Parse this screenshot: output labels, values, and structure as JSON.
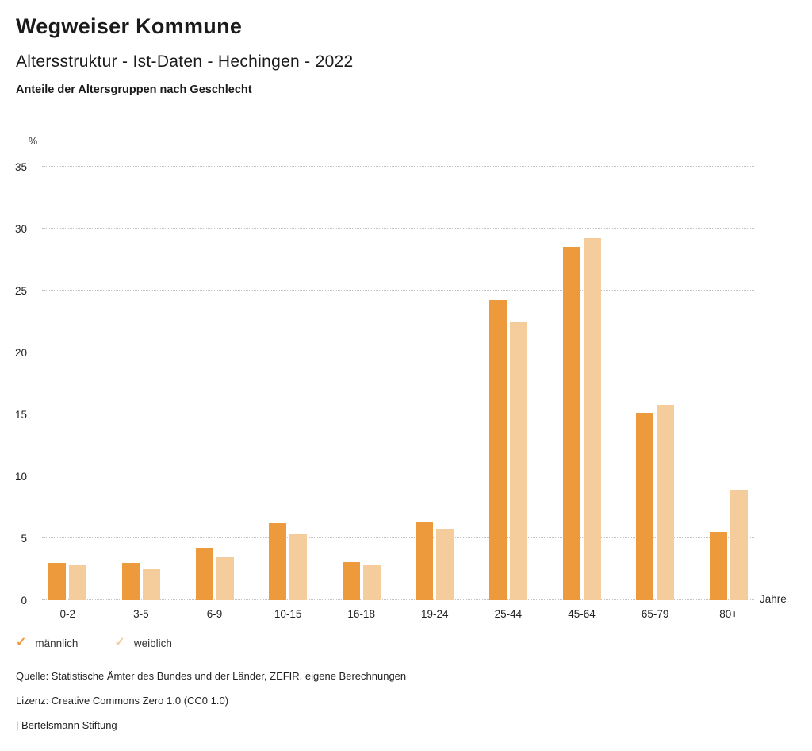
{
  "header": {
    "title": "Wegweiser Kommune",
    "subtitle": "Altersstruktur - Ist-Daten - Hechingen - 2022",
    "chart_heading": "Anteile der Altersgruppen nach Geschlecht"
  },
  "chart_data": {
    "type": "bar",
    "title": "Anteile der Altersgruppen nach Geschlecht",
    "categories": [
      "0-2",
      "3-5",
      "6-9",
      "10-15",
      "16-18",
      "19-24",
      "25-44",
      "45-64",
      "65-79",
      "80+"
    ],
    "series": [
      {
        "name": "männlich",
        "color": "#EC9A3C",
        "values": [
          3.0,
          3.0,
          4.2,
          6.2,
          3.1,
          6.3,
          24.2,
          28.5,
          15.1,
          5.5
        ]
      },
      {
        "name": "weiblich",
        "color": "#F5CD9C",
        "values": [
          2.8,
          2.5,
          3.5,
          5.3,
          2.8,
          5.8,
          22.5,
          29.2,
          15.8,
          8.9
        ]
      }
    ],
    "xlabel": "Jahre",
    "ylabel": "%",
    "ylim": [
      0,
      35
    ],
    "ytick_step": 5,
    "grid": true,
    "gridline_style": "dotted",
    "legend_position": "bottom-left"
  },
  "legend": {
    "items": [
      {
        "icon": "✓",
        "label": "männlich",
        "color": "#EC9A3C"
      },
      {
        "icon": "✓",
        "label": "weiblich",
        "color": "#F5CD9C"
      }
    ]
  },
  "footer": {
    "source": "Quelle: Statistische Ämter des Bundes und der Länder, ZEFIR, eigene Berechnungen",
    "license": "Lizenz: Creative Commons Zero 1.0 (CC0 1.0)",
    "attribution": "| Bertelsmann Stiftung"
  }
}
